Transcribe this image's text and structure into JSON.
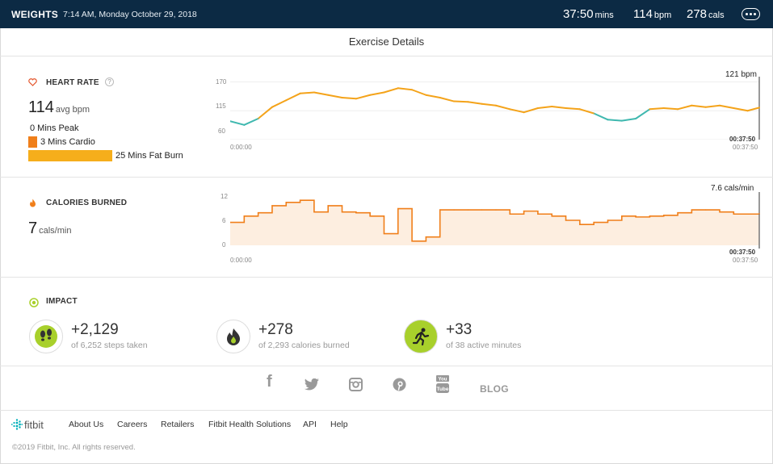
{
  "header": {
    "activity_type": "WEIGHTS",
    "datetime": "7:14 AM, Monday October 29, 2018",
    "duration_value": "37:50",
    "duration_unit": "mins",
    "hr_value": "114",
    "hr_unit": "bpm",
    "cal_value": "278",
    "cal_unit": "cals"
  },
  "page_title": "Exercise Details",
  "heart_rate": {
    "title": "HEART RATE",
    "help": "?",
    "avg_value": "114",
    "avg_unit": "avg bpm",
    "zones": [
      {
        "label": "0 Mins Peak",
        "minutes": 0,
        "color": "#e4572e"
      },
      {
        "label": "3 Mins Cardio",
        "minutes": 3,
        "color": "#f07f1a"
      },
      {
        "label": "25 Mins Fat Burn",
        "minutes": 25,
        "color": "#f6ae1b"
      }
    ],
    "peak_label": "121 bpm",
    "y_ticks": [
      "170",
      "115",
      "60"
    ],
    "x_start": "0:00:00",
    "x_end_bold": "00:37:50",
    "x_end": "00:37:50"
  },
  "calories": {
    "title": "CALORIES BURNED",
    "value": "7",
    "unit": "cals/min",
    "peak_label": "7.6 cals/min",
    "y_ticks": [
      "12",
      "6",
      "0"
    ],
    "x_start": "0:00:00",
    "x_end_bold": "00:37:50",
    "x_end": "00:37:50"
  },
  "impact": {
    "title": "IMPACT",
    "items": [
      {
        "value": "+2,129",
        "sub": "of 6,252 steps taken",
        "icon": "footsteps-icon"
      },
      {
        "value": "+278",
        "sub": "of 2,293 calories burned",
        "icon": "flame-icon"
      },
      {
        "value": "+33",
        "sub": "of 38 active minutes",
        "icon": "running-person-icon"
      }
    ]
  },
  "social": {
    "facebook": "f",
    "blog": "BLOG"
  },
  "footer": {
    "brand": "fitbit",
    "links": [
      "About Us",
      "Careers",
      "Retailers",
      "Fitbit Health Solutions",
      "API",
      "Help"
    ],
    "copyright": "©2019 Fitbit, Inc. All rights reserved."
  },
  "colors": {
    "header_bg": "#0c2a44",
    "hr_line": "#f4a31a",
    "hr_low": "#3fb8af",
    "cal_line": "#f07f1a",
    "cal_fill": "#fdeee0",
    "impact_green": "#a8d02b",
    "brand_teal": "#00b0b9"
  },
  "chart_data": [
    {
      "type": "line",
      "title": "HEART RATE",
      "ylabel": "bpm",
      "ylim": [
        60,
        180
      ],
      "y_ticks": [
        60,
        115,
        170
      ],
      "x_unit": "minutes",
      "xlim": [
        0,
        37.83
      ],
      "series": [
        {
          "x": [
            0,
            1,
            2,
            3,
            4,
            5,
            6,
            7,
            8,
            9,
            10,
            11,
            12,
            13,
            14,
            15,
            16,
            17,
            18,
            19,
            20,
            21,
            22,
            23,
            24,
            25,
            26,
            27,
            28,
            29,
            30,
            31,
            32,
            33,
            34,
            35,
            36,
            37,
            37.83
          ],
          "values": [
            95,
            88,
            100,
            122,
            135,
            148,
            150,
            145,
            140,
            138,
            145,
            150,
            158,
            155,
            145,
            140,
            133,
            132,
            128,
            125,
            118,
            112,
            120,
            123,
            120,
            118,
            110,
            98,
            96,
            100,
            118,
            120,
            118,
            125,
            122,
            125,
            120,
            115,
            121
          ]
        }
      ]
    },
    {
      "type": "area",
      "title": "CALORIES BURNED",
      "ylabel": "cals/min",
      "ylim": [
        0,
        12
      ],
      "y_ticks": [
        0,
        6,
        12
      ],
      "x_unit": "minutes",
      "xlim": [
        0,
        37.83
      ],
      "series": [
        {
          "x": [
            0,
            1,
            2,
            3,
            4,
            5,
            6,
            7,
            8,
            9,
            10,
            11,
            12,
            13,
            14,
            15,
            16,
            17,
            18,
            19,
            20,
            21,
            22,
            23,
            24,
            25,
            26,
            27,
            28,
            29,
            30,
            31,
            32,
            33,
            34,
            35,
            36,
            37,
            37.83
          ],
          "values": [
            5.5,
            7,
            7.8,
            9.5,
            10.3,
            10.8,
            8,
            9.5,
            8,
            7.8,
            7,
            2.8,
            8.8,
            1,
            2,
            8.5,
            8.5,
            8.5,
            8.5,
            8.5,
            7.5,
            8.2,
            7.5,
            7,
            6,
            5,
            5.5,
            6,
            7,
            6.8,
            7,
            7.2,
            7.8,
            8.5,
            8.5,
            8,
            7.5,
            7.5,
            7.6
          ]
        }
      ]
    }
  ]
}
